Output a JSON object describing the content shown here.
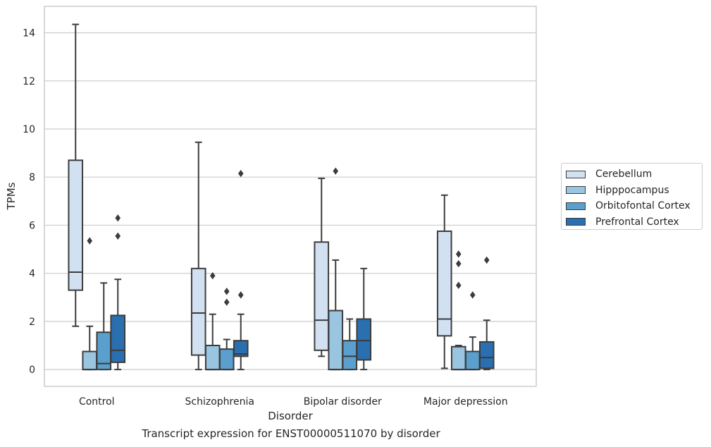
{
  "chart_data": {
    "type": "box",
    "xlabel": "Disorder",
    "ylabel": "TPMs",
    "caption": "Transcript expression for ENST00000511070 by disorder",
    "ylim": [
      -0.7,
      15.1
    ],
    "yticks": [
      0,
      2,
      4,
      6,
      8,
      10,
      12,
      14
    ],
    "grid": "horizontal",
    "legend_placement": "right",
    "categories": [
      "Control",
      "Schizophrenia",
      "Bipolar disorder",
      "Major depression"
    ],
    "series": [
      {
        "name": "Cerebellum",
        "color": "#d2e1f1",
        "boxes": [
          {
            "whisker_low": 1.8,
            "q1": 3.3,
            "median": 4.05,
            "q3": 8.7,
            "whisker_high": 14.35,
            "outliers": []
          },
          {
            "whisker_low": 0.0,
            "q1": 0.6,
            "median": 2.35,
            "q3": 4.2,
            "whisker_high": 9.45,
            "outliers": []
          },
          {
            "whisker_low": 0.55,
            "q1": 0.8,
            "median": 2.05,
            "q3": 5.3,
            "whisker_high": 7.95,
            "outliers": []
          },
          {
            "whisker_low": 0.05,
            "q1": 1.4,
            "median": 2.1,
            "q3": 5.75,
            "whisker_high": 7.25,
            "outliers": []
          }
        ]
      },
      {
        "name": "Hipppocampus",
        "color": "#9ac5e0",
        "boxes": [
          {
            "whisker_low": 0.0,
            "q1": 0.0,
            "median": 0.0,
            "q3": 0.75,
            "whisker_high": 1.8,
            "outliers": [
              5.35
            ]
          },
          {
            "whisker_low": 0.0,
            "q1": 0.0,
            "median": 0.0,
            "q3": 1.0,
            "whisker_high": 2.3,
            "outliers": [
              3.9
            ]
          },
          {
            "whisker_low": 0.0,
            "q1": 0.0,
            "median": 0.0,
            "q3": 2.45,
            "whisker_high": 4.55,
            "outliers": [
              8.25
            ]
          },
          {
            "whisker_low": 0.0,
            "q1": 0.0,
            "median": 0.0,
            "q3": 0.95,
            "whisker_high": 1.0,
            "outliers": [
              3.5,
              4.4,
              4.8
            ]
          }
        ]
      },
      {
        "name": "Orbitofontal Cortex",
        "color": "#5a9fcd",
        "boxes": [
          {
            "whisker_low": 0.0,
            "q1": 0.0,
            "median": 0.25,
            "q3": 1.55,
            "whisker_high": 3.6,
            "outliers": []
          },
          {
            "whisker_low": 0.0,
            "q1": 0.0,
            "median": 0.0,
            "q3": 0.85,
            "whisker_high": 1.25,
            "outliers": [
              2.8,
              3.25
            ]
          },
          {
            "whisker_low": 0.0,
            "q1": 0.0,
            "median": 0.55,
            "q3": 1.2,
            "whisker_high": 2.1,
            "outliers": []
          },
          {
            "whisker_low": 0.0,
            "q1": 0.0,
            "median": 0.0,
            "q3": 0.75,
            "whisker_high": 1.35,
            "outliers": [
              3.1
            ]
          }
        ]
      },
      {
        "name": "Prefrontal Cortex",
        "color": "#2a6fb0",
        "boxes": [
          {
            "whisker_low": 0.0,
            "q1": 0.3,
            "median": 0.8,
            "q3": 2.25,
            "whisker_high": 3.75,
            "outliers": [
              5.55,
              6.3
            ]
          },
          {
            "whisker_low": 0.0,
            "q1": 0.55,
            "median": 0.65,
            "q3": 1.2,
            "whisker_high": 2.3,
            "outliers": [
              3.1,
              8.15
            ]
          },
          {
            "whisker_low": 0.0,
            "q1": 0.4,
            "median": 1.2,
            "q3": 2.1,
            "whisker_high": 4.2,
            "outliers": []
          },
          {
            "whisker_low": 0.0,
            "q1": 0.05,
            "median": 0.5,
            "q3": 1.15,
            "whisker_high": 2.05,
            "outliers": [
              4.55
            ]
          }
        ]
      }
    ]
  }
}
